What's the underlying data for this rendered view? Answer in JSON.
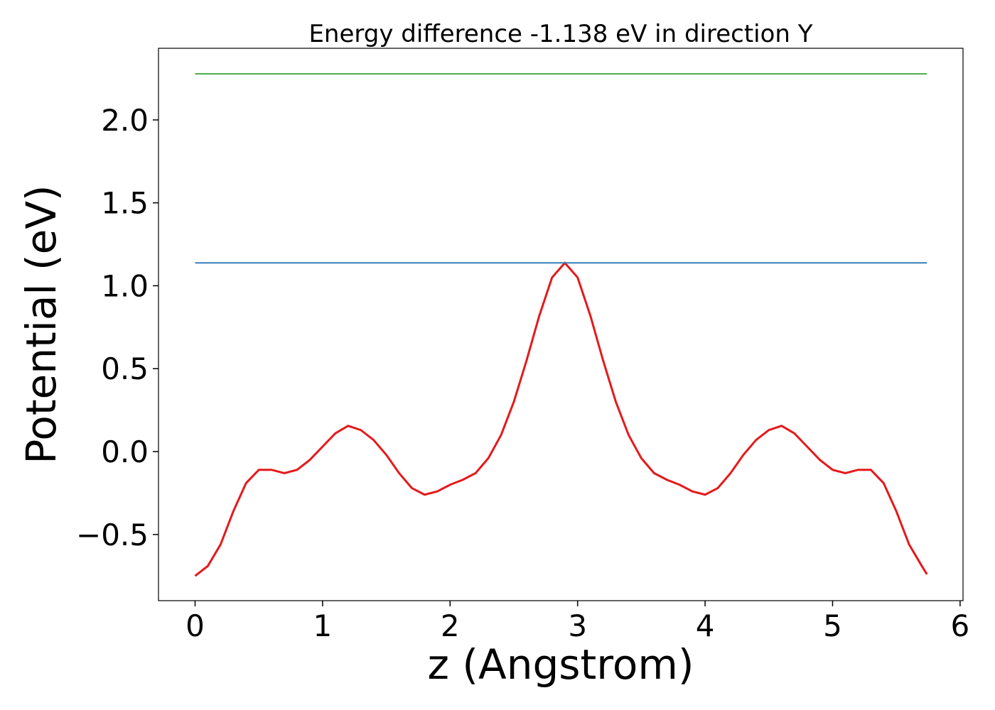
{
  "chart_data": {
    "type": "line",
    "title": "Energy difference -1.138 eV in direction Y",
    "xlabel": "z (Angstrom)",
    "ylabel": "Potential (eV)",
    "xlim": [
      -0.287,
      6.023
    ],
    "ylim": [
      -0.899,
      2.432
    ],
    "xticks": [
      0,
      1,
      2,
      3,
      4,
      5,
      6
    ],
    "yticks": [
      {
        "value": -0.5,
        "label": "−0.5"
      },
      {
        "value": 0,
        "label": "0.0"
      },
      0.5,
      {
        "value": 1,
        "label": "1.0"
      },
      1.5,
      {
        "value": 2,
        "label": "2.0"
      }
    ],
    "grid": false,
    "series": [
      {
        "color": "#e41a1c",
        "x": [
          0,
          0.1,
          0.2,
          0.3,
          0.4,
          0.5,
          0.6,
          0.7,
          0.8,
          0.9,
          1.0,
          1.1,
          1.2,
          1.3,
          1.4,
          1.5,
          1.6,
          1.7,
          1.8,
          1.9,
          2.0,
          2.1,
          2.2,
          2.3,
          2.4,
          2.5,
          2.6,
          2.7,
          2.8,
          2.9,
          3.0,
          3.1,
          3.2,
          3.3,
          3.4,
          3.5,
          3.6,
          3.7,
          3.8,
          3.9,
          4.0,
          4.1,
          4.2,
          4.3,
          4.4,
          4.5,
          4.6,
          4.7,
          4.8,
          4.9,
          5.0,
          5.1,
          5.2,
          5.3,
          5.4,
          5.5,
          5.6,
          5.7,
          5.74
        ],
        "values": [
          -0.75,
          -0.69,
          -0.56,
          -0.36,
          -0.19,
          -0.11,
          -0.11,
          -0.13,
          -0.11,
          -0.05,
          0.03,
          0.11,
          0.155,
          0.13,
          0.07,
          -0.02,
          -0.13,
          -0.22,
          -0.26,
          -0.24,
          -0.2,
          -0.17,
          -0.13,
          -0.04,
          0.1,
          0.3,
          0.55,
          0.82,
          1.05,
          1.138,
          1.05,
          0.82,
          0.55,
          0.3,
          0.1,
          -0.04,
          -0.13,
          -0.17,
          -0.2,
          -0.24,
          -0.26,
          -0.22,
          -0.13,
          -0.02,
          0.07,
          0.13,
          0.155,
          0.11,
          0.03,
          -0.05,
          -0.11,
          -0.13,
          -0.11,
          -0.11,
          -0.19,
          -0.36,
          -0.56,
          -0.69,
          -0.74
        ]
      },
      {
        "color": "#377eb8",
        "x": [
          0,
          5.74
        ],
        "values": [
          1.138,
          1.138
        ]
      },
      {
        "color": "#4daf4a",
        "x": [
          0,
          5.74
        ],
        "values": [
          2.278,
          2.278
        ]
      }
    ]
  }
}
